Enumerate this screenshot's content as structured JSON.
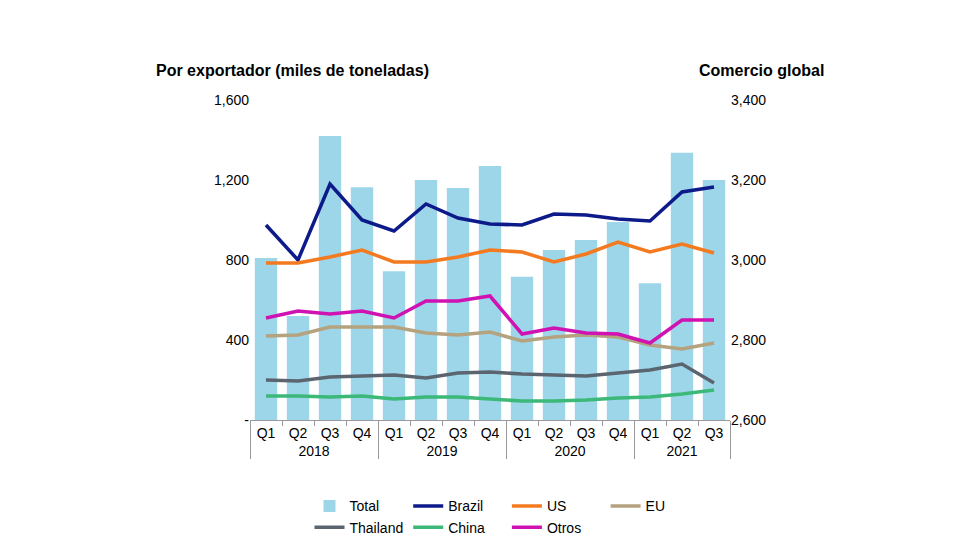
{
  "chart_data": {
    "type": "bar",
    "ylabel": "Por exportador (miles de toneladas)",
    "y2label": "Comercio global",
    "categories": [
      [
        "2018",
        "Q1"
      ],
      [
        "2018",
        "Q2"
      ],
      [
        "2018",
        "Q3"
      ],
      [
        "2018",
        "Q4"
      ],
      [
        "2019",
        "Q1"
      ],
      [
        "2019",
        "Q2"
      ],
      [
        "2019",
        "Q3"
      ],
      [
        "2019",
        "Q4"
      ],
      [
        "2020",
        "Q1"
      ],
      [
        "2020",
        "Q2"
      ],
      [
        "2020",
        "Q3"
      ],
      [
        "2020",
        "Q4"
      ],
      [
        "2021",
        "Q1"
      ],
      [
        "2021",
        "Q2"
      ],
      [
        "2021",
        "Q3"
      ]
    ],
    "series": [
      {
        "name": "Total",
        "type": "bar",
        "axis": "y2",
        "color": "#9dd6e8",
        "values": [
          3005,
          2860,
          3310,
          3182,
          2972,
          3200,
          3180,
          3235,
          2958,
          3025,
          3050,
          3095,
          2942,
          3268,
          3200
        ]
      },
      {
        "name": "Brazil",
        "type": "line",
        "color": "#0d1a8a",
        "values": [
          975,
          800,
          1180,
          1000,
          945,
          1080,
          1010,
          980,
          975,
          1030,
          1025,
          1005,
          995,
          1140,
          1165
        ]
      },
      {
        "name": "US",
        "type": "line",
        "color": "#f47a20",
        "values": [
          785,
          785,
          815,
          850,
          790,
          790,
          815,
          850,
          840,
          790,
          830,
          890,
          840,
          880,
          835
        ]
      },
      {
        "name": "EU",
        "type": "line",
        "color": "#b5a27f",
        "values": [
          420,
          425,
          465,
          465,
          465,
          435,
          425,
          440,
          395,
          415,
          425,
          415,
          375,
          355,
          385
        ]
      },
      {
        "name": "Thailand",
        "type": "line",
        "color": "#5a6570",
        "values": [
          200,
          195,
          215,
          220,
          225,
          210,
          235,
          240,
          230,
          225,
          220,
          235,
          250,
          280,
          185
        ]
      },
      {
        "name": "China",
        "type": "line",
        "color": "#3cb878",
        "values": [
          120,
          120,
          115,
          120,
          105,
          115,
          115,
          105,
          95,
          95,
          100,
          110,
          115,
          130,
          150
        ]
      },
      {
        "name": "Otros",
        "type": "line",
        "color": "#d012b2",
        "values": [
          510,
          545,
          530,
          545,
          510,
          595,
          595,
          620,
          430,
          460,
          435,
          430,
          385,
          500,
          500
        ]
      }
    ],
    "ylim": [
      0,
      1600
    ],
    "yticks": [
      {
        "value": 0,
        "label": "-"
      },
      400,
      800,
      {
        "value": 1200,
        "label": "1,200"
      },
      {
        "value": 1600,
        "label": "1,600"
      }
    ],
    "y2lim": [
      2600,
      3400
    ],
    "y2ticks": [
      {
        "value": 2600,
        "label": "2,600"
      },
      {
        "value": 2800,
        "label": "2,800"
      },
      {
        "value": 3000,
        "label": "3,000"
      },
      {
        "value": 3200,
        "label": "3,200"
      },
      {
        "value": 3400,
        "label": "3,400"
      }
    ],
    "grid": false,
    "legend": "bottom"
  }
}
